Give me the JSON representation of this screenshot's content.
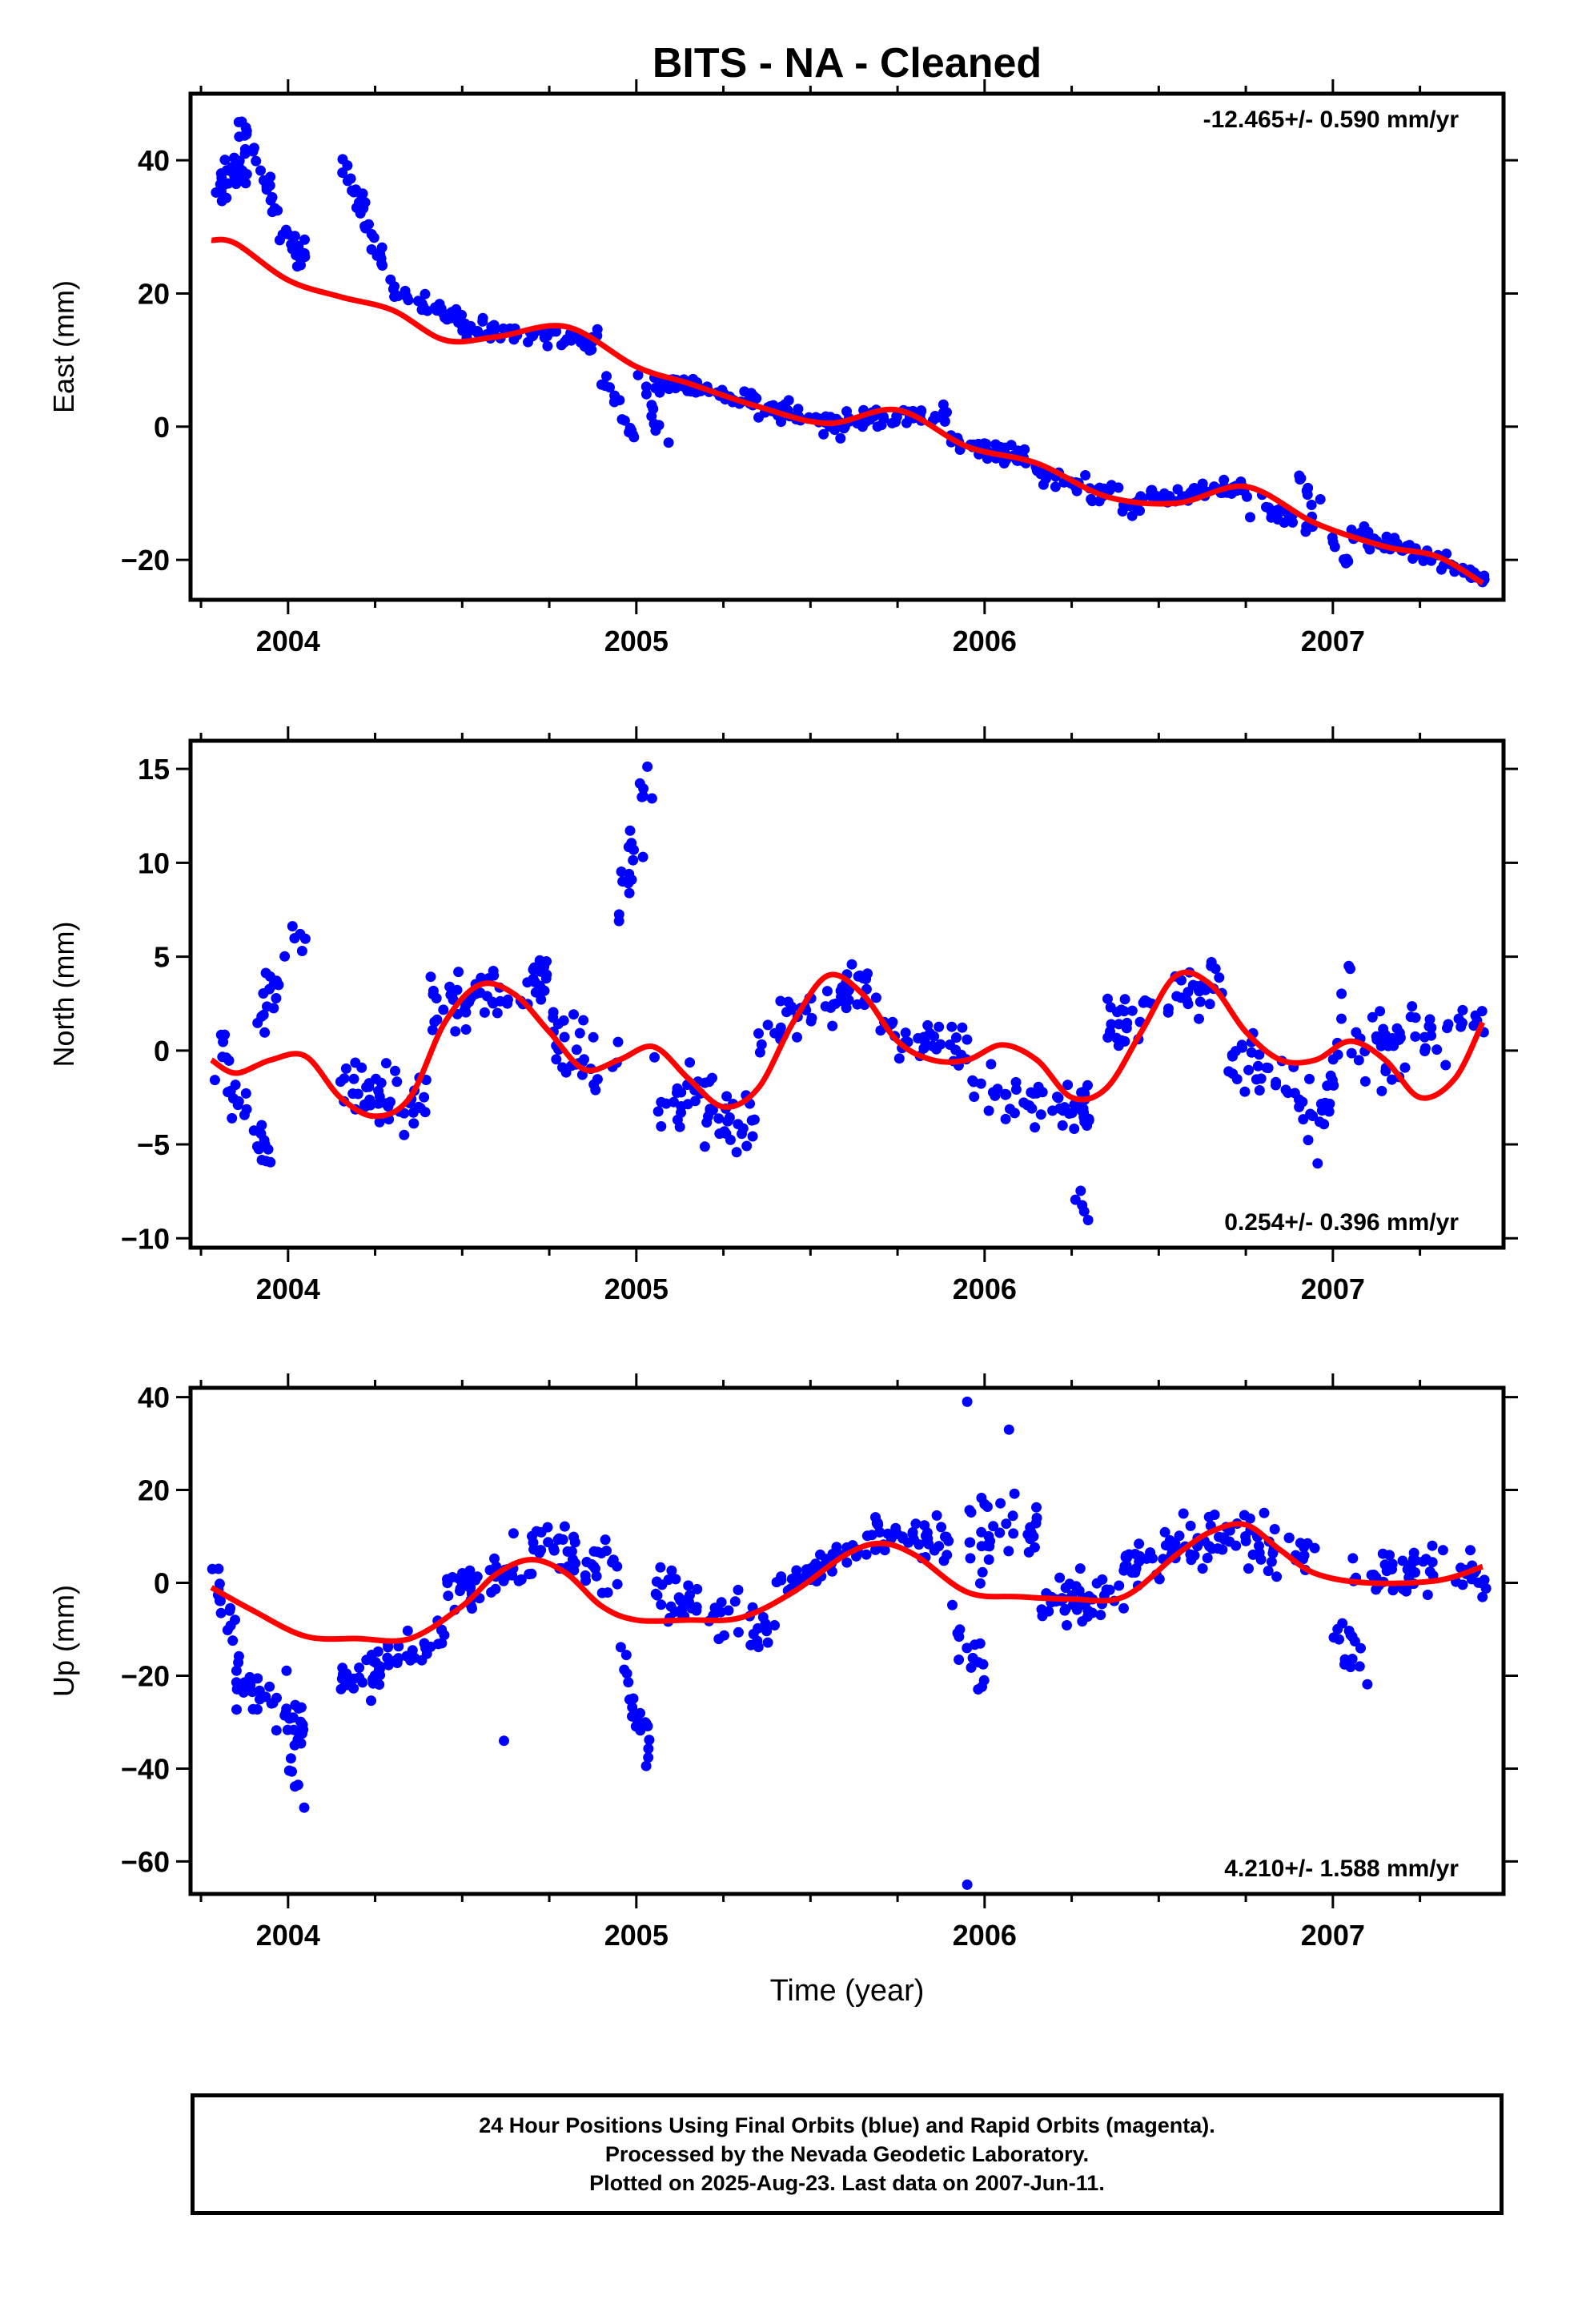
{
  "title": "BITS  - NA - Cleaned",
  "colors": {
    "points": "#0000ff",
    "trend": "#ff0000",
    "frame": "#000000"
  },
  "chart_data": [
    {
      "type": "scatter",
      "ylabel": "East (mm)",
      "rate": "-12.465+/- 0.590 mm/yr",
      "rate_position": "top-right",
      "xlim": [
        2003.72,
        2007.49
      ],
      "ylim": [
        -26,
        50
      ],
      "yticks": [
        -20,
        0,
        20,
        40
      ],
      "xticks": [
        2004,
        2005,
        2006,
        2007
      ],
      "trend": {
        "x": [
          2003.78,
          2003.85,
          2004.0,
          2004.15,
          2004.3,
          2004.45,
          2004.6,
          2004.8,
          2005.0,
          2005.15,
          2005.35,
          2005.55,
          2005.75,
          2005.95,
          2006.15,
          2006.35,
          2006.55,
          2006.75,
          2006.95,
          2007.15,
          2007.3,
          2007.43
        ],
        "y": [
          28,
          27.5,
          22,
          19.5,
          17.5,
          13,
          13.5,
          15,
          9,
          6.5,
          3,
          0.5,
          2.5,
          -3,
          -5.5,
          -10.5,
          -11.5,
          -9,
          -14.5,
          -18,
          -19.5,
          -23.5
        ]
      },
      "clusters": [
        {
          "x": [
            2003.78,
            2003.9
          ],
          "y": [
            35,
            40
          ],
          "n": 30,
          "noise": 3
        },
        {
          "x": [
            2003.85,
            2003.95
          ],
          "y": [
            46,
            36
          ],
          "n": 20,
          "noise": 2
        },
        {
          "x": [
            2003.95,
            2004.05
          ],
          "y": [
            33,
            25
          ],
          "n": 25,
          "noise": 2.5
        },
        {
          "x": [
            2004.15,
            2004.3
          ],
          "y": [
            40,
            22
          ],
          "n": 30,
          "noise": 2.5
        },
        {
          "x": [
            2004.3,
            2004.5
          ],
          "y": [
            20,
            16
          ],
          "n": 35,
          "noise": 1.5
        },
        {
          "x": [
            2004.5,
            2004.9
          ],
          "y": [
            15,
            13
          ],
          "n": 60,
          "noise": 1.5
        },
        {
          "x": [
            2004.9,
            2005.0
          ],
          "y": [
            8,
            -2
          ],
          "n": 15,
          "noise": 2
        },
        {
          "x": [
            2005.0,
            2005.1
          ],
          "y": [
            7,
            -4
          ],
          "n": 10,
          "noise": 2
        },
        {
          "x": [
            2005.05,
            2005.35
          ],
          "y": [
            7,
            4
          ],
          "n": 50,
          "noise": 1.5
        },
        {
          "x": [
            2005.35,
            2005.6
          ],
          "y": [
            3,
            0
          ],
          "n": 40,
          "noise": 1.5
        },
        {
          "x": [
            2005.6,
            2005.9
          ],
          "y": [
            1,
            2
          ],
          "n": 45,
          "noise": 1.5
        },
        {
          "x": [
            2005.9,
            2006.15
          ],
          "y": [
            -2,
            -5
          ],
          "n": 45,
          "noise": 1.5
        },
        {
          "x": [
            2006.15,
            2006.45
          ],
          "y": [
            -7,
            -12
          ],
          "n": 50,
          "noise": 1.8
        },
        {
          "x": [
            2006.45,
            2006.75
          ],
          "y": [
            -11,
            -9
          ],
          "n": 50,
          "noise": 1.2
        },
        {
          "x": [
            2006.75,
            2006.95
          ],
          "y": [
            -12,
            -15
          ],
          "n": 25,
          "noise": 2
        },
        {
          "x": [
            2006.9,
            2007.05
          ],
          "y": [
            -7,
            -22
          ],
          "n": 15,
          "noise": 2
        },
        {
          "x": [
            2007.05,
            2007.25
          ],
          "y": [
            -16,
            -19
          ],
          "n": 30,
          "noise": 1.5
        },
        {
          "x": [
            2007.25,
            2007.44
          ],
          "y": [
            -19,
            -23
          ],
          "n": 30,
          "noise": 1.2
        }
      ]
    },
    {
      "type": "scatter",
      "ylabel": "North (mm)",
      "rate": "0.254+/- 0.396 mm/yr",
      "rate_position": "bottom-right",
      "xlim": [
        2003.72,
        2007.49
      ],
      "ylim": [
        -10.5,
        16.5
      ],
      "yticks": [
        -10,
        -5,
        0,
        5,
        10,
        15
      ],
      "xticks": [
        2004,
        2005,
        2006,
        2007
      ],
      "trend": {
        "x": [
          2003.78,
          2003.85,
          2003.95,
          2004.05,
          2004.15,
          2004.25,
          2004.35,
          2004.45,
          2004.55,
          2004.65,
          2004.75,
          2004.85,
          2004.95,
          2005.05,
          2005.15,
          2005.25,
          2005.35,
          2005.45,
          2005.55,
          2005.65,
          2005.75,
          2005.85,
          2005.95,
          2006.05,
          2006.15,
          2006.25,
          2006.35,
          2006.45,
          2006.55,
          2006.65,
          2006.75,
          2006.85,
          2006.95,
          2007.05,
          2007.15,
          2007.25,
          2007.35,
          2007.43
        ],
        "y": [
          -0.5,
          -1.2,
          -0.5,
          -0.3,
          -2.5,
          -3.5,
          -2.5,
          1.5,
          3.5,
          3,
          1,
          -1,
          -0.5,
          0.2,
          -1.5,
          -3,
          -2,
          1.5,
          4,
          3,
          0.5,
          -0.5,
          -0.5,
          0.3,
          -0.5,
          -2.5,
          -2,
          1,
          4,
          3.5,
          1,
          -0.5,
          -0.5,
          0.5,
          -0.5,
          -2.5,
          -1.5,
          1.5
        ]
      },
      "clusters": [
        {
          "x": [
            2003.78,
            2003.95
          ],
          "y": [
            0,
            -5
          ],
          "n": 30,
          "noise": 2
        },
        {
          "x": [
            2003.9,
            2004.05
          ],
          "y": [
            1,
            7
          ],
          "n": 20,
          "noise": 1.5
        },
        {
          "x": [
            2004.15,
            2004.4
          ],
          "y": [
            -2,
            -3
          ],
          "n": 45,
          "noise": 1.5
        },
        {
          "x": [
            2004.4,
            2004.75
          ],
          "y": [
            2,
            4
          ],
          "n": 60,
          "noise": 1.5
        },
        {
          "x": [
            2004.75,
            2004.95
          ],
          "y": [
            1,
            -1
          ],
          "n": 30,
          "noise": 1.8
        },
        {
          "x": [
            2004.95,
            2005.05
          ],
          "y": [
            8,
            14
          ],
          "n": 20,
          "noise": 2.5
        },
        {
          "x": [
            2005.05,
            2005.35
          ],
          "y": [
            -2,
            -4
          ],
          "n": 50,
          "noise": 1.8
        },
        {
          "x": [
            2005.35,
            2005.7
          ],
          "y": [
            1,
            4
          ],
          "n": 50,
          "noise": 1.5
        },
        {
          "x": [
            2005.7,
            2005.95
          ],
          "y": [
            1,
            0
          ],
          "n": 35,
          "noise": 1.5
        },
        {
          "x": [
            2005.95,
            2006.3
          ],
          "y": [
            -2,
            -3
          ],
          "n": 55,
          "noise": 1.5
        },
        {
          "x": [
            2006.25,
            2006.3
          ],
          "y": [
            -7,
            -9
          ],
          "n": 5,
          "noise": 0.8
        },
        {
          "x": [
            2006.35,
            2006.7
          ],
          "y": [
            1,
            4
          ],
          "n": 50,
          "noise": 1.5
        },
        {
          "x": [
            2006.7,
            2006.95
          ],
          "y": [
            0,
            -3
          ],
          "n": 35,
          "noise": 2
        },
        {
          "x": [
            2006.95,
            2007.05
          ],
          "y": [
            -5,
            4
          ],
          "n": 20,
          "noise": 2
        },
        {
          "x": [
            2007.05,
            2007.44
          ],
          "y": [
            0,
            1
          ],
          "n": 55,
          "noise": 1.8
        }
      ]
    },
    {
      "type": "scatter",
      "ylabel": "Up (mm)",
      "xlabel": "Time (year)",
      "rate": "4.210+/- 1.588 mm/yr",
      "rate_position": "bottom-right",
      "xlim": [
        2003.72,
        2007.49
      ],
      "ylim": [
        -67,
        42
      ],
      "yticks": [
        -60,
        -40,
        -20,
        0,
        20,
        40
      ],
      "xticks": [
        2004,
        2005,
        2006,
        2007
      ],
      "trend": {
        "x": [
          2003.78,
          2003.9,
          2004.05,
          2004.2,
          2004.35,
          2004.5,
          2004.6,
          2004.7,
          2004.8,
          2004.9,
          2005.0,
          2005.15,
          2005.3,
          2005.45,
          2005.6,
          2005.7,
          2005.8,
          2005.95,
          2006.1,
          2006.25,
          2006.4,
          2006.55,
          2006.65,
          2006.75,
          2006.85,
          2006.95,
          2007.1,
          2007.3,
          2007.43
        ],
        "y": [
          -1,
          -6,
          -11.5,
          -12,
          -12,
          -5,
          2,
          5,
          2,
          -5,
          -8,
          -8,
          -7.5,
          -2,
          6,
          8.5,
          6,
          -2,
          -3,
          -3.5,
          -3,
          6,
          11,
          12.5,
          7,
          2,
          0,
          0.5,
          3.5
        ]
      },
      "clusters": [
        {
          "x": [
            2003.78,
            2003.85
          ],
          "y": [
            0,
            -10
          ],
          "n": 15,
          "noise": 4
        },
        {
          "x": [
            2003.85,
            2004.05
          ],
          "y": [
            -20,
            -30
          ],
          "n": 45,
          "noise": 6
        },
        {
          "x": [
            2004.0,
            2004.05
          ],
          "y": [
            -40,
            -50
          ],
          "n": 6,
          "noise": 3
        },
        {
          "x": [
            2004.15,
            2004.45
          ],
          "y": [
            -22,
            -12
          ],
          "n": 55,
          "noise": 5
        },
        {
          "x": [
            2004.45,
            2004.75
          ],
          "y": [
            -2,
            8
          ],
          "n": 55,
          "noise": 5
        },
        {
          "x": [
            2004.75,
            2004.95
          ],
          "y": [
            8,
            4
          ],
          "n": 35,
          "noise": 6
        },
        {
          "x": [
            2004.95,
            2005.05
          ],
          "y": [
            -15,
            -40
          ],
          "n": 20,
          "noise": 6
        },
        {
          "x": [
            2005.05,
            2005.4
          ],
          "y": [
            -2,
            -10
          ],
          "n": 50,
          "noise": 6
        },
        {
          "x": [
            2005.4,
            2005.65
          ],
          "y": [
            -2,
            8
          ],
          "n": 40,
          "noise": 4
        },
        {
          "x": [
            2005.65,
            2005.9
          ],
          "y": [
            10,
            8
          ],
          "n": 40,
          "noise": 5
        },
        {
          "x": [
            2005.9,
            2006.0
          ],
          "y": [
            -8,
            -20
          ],
          "n": 15,
          "noise": 6
        },
        {
          "x": [
            2005.95,
            2006.15
          ],
          "y": [
            10,
            12
          ],
          "n": 35,
          "noise": 8
        },
        {
          "x": [
            2006.15,
            2006.4
          ],
          "y": [
            -5,
            -3
          ],
          "n": 45,
          "noise": 5
        },
        {
          "x": [
            2006.4,
            2006.65
          ],
          "y": [
            3,
            10
          ],
          "n": 45,
          "noise": 5
        },
        {
          "x": [
            2006.65,
            2006.95
          ],
          "y": [
            12,
            6
          ],
          "n": 45,
          "noise": 6
        },
        {
          "x": [
            2007.0,
            2007.1
          ],
          "y": [
            -10,
            -20
          ],
          "n": 15,
          "noise": 5
        },
        {
          "x": [
            2007.05,
            2007.44
          ],
          "y": [
            2,
            2
          ],
          "n": 60,
          "noise": 6
        }
      ],
      "outliers": [
        {
          "x": 2004.62,
          "y": -34
        },
        {
          "x": 2005.95,
          "y": -65
        },
        {
          "x": 2005.95,
          "y": 39
        },
        {
          "x": 2006.07,
          "y": 33
        }
      ]
    }
  ],
  "footer": {
    "line1": "24 Hour Positions Using Final Orbits (blue) and Rapid Orbits (magenta).",
    "line2": "Processed by the Nevada Geodetic Laboratory.",
    "line3": "Plotted on 2025-Aug-23. Last data on 2007-Jun-11."
  }
}
